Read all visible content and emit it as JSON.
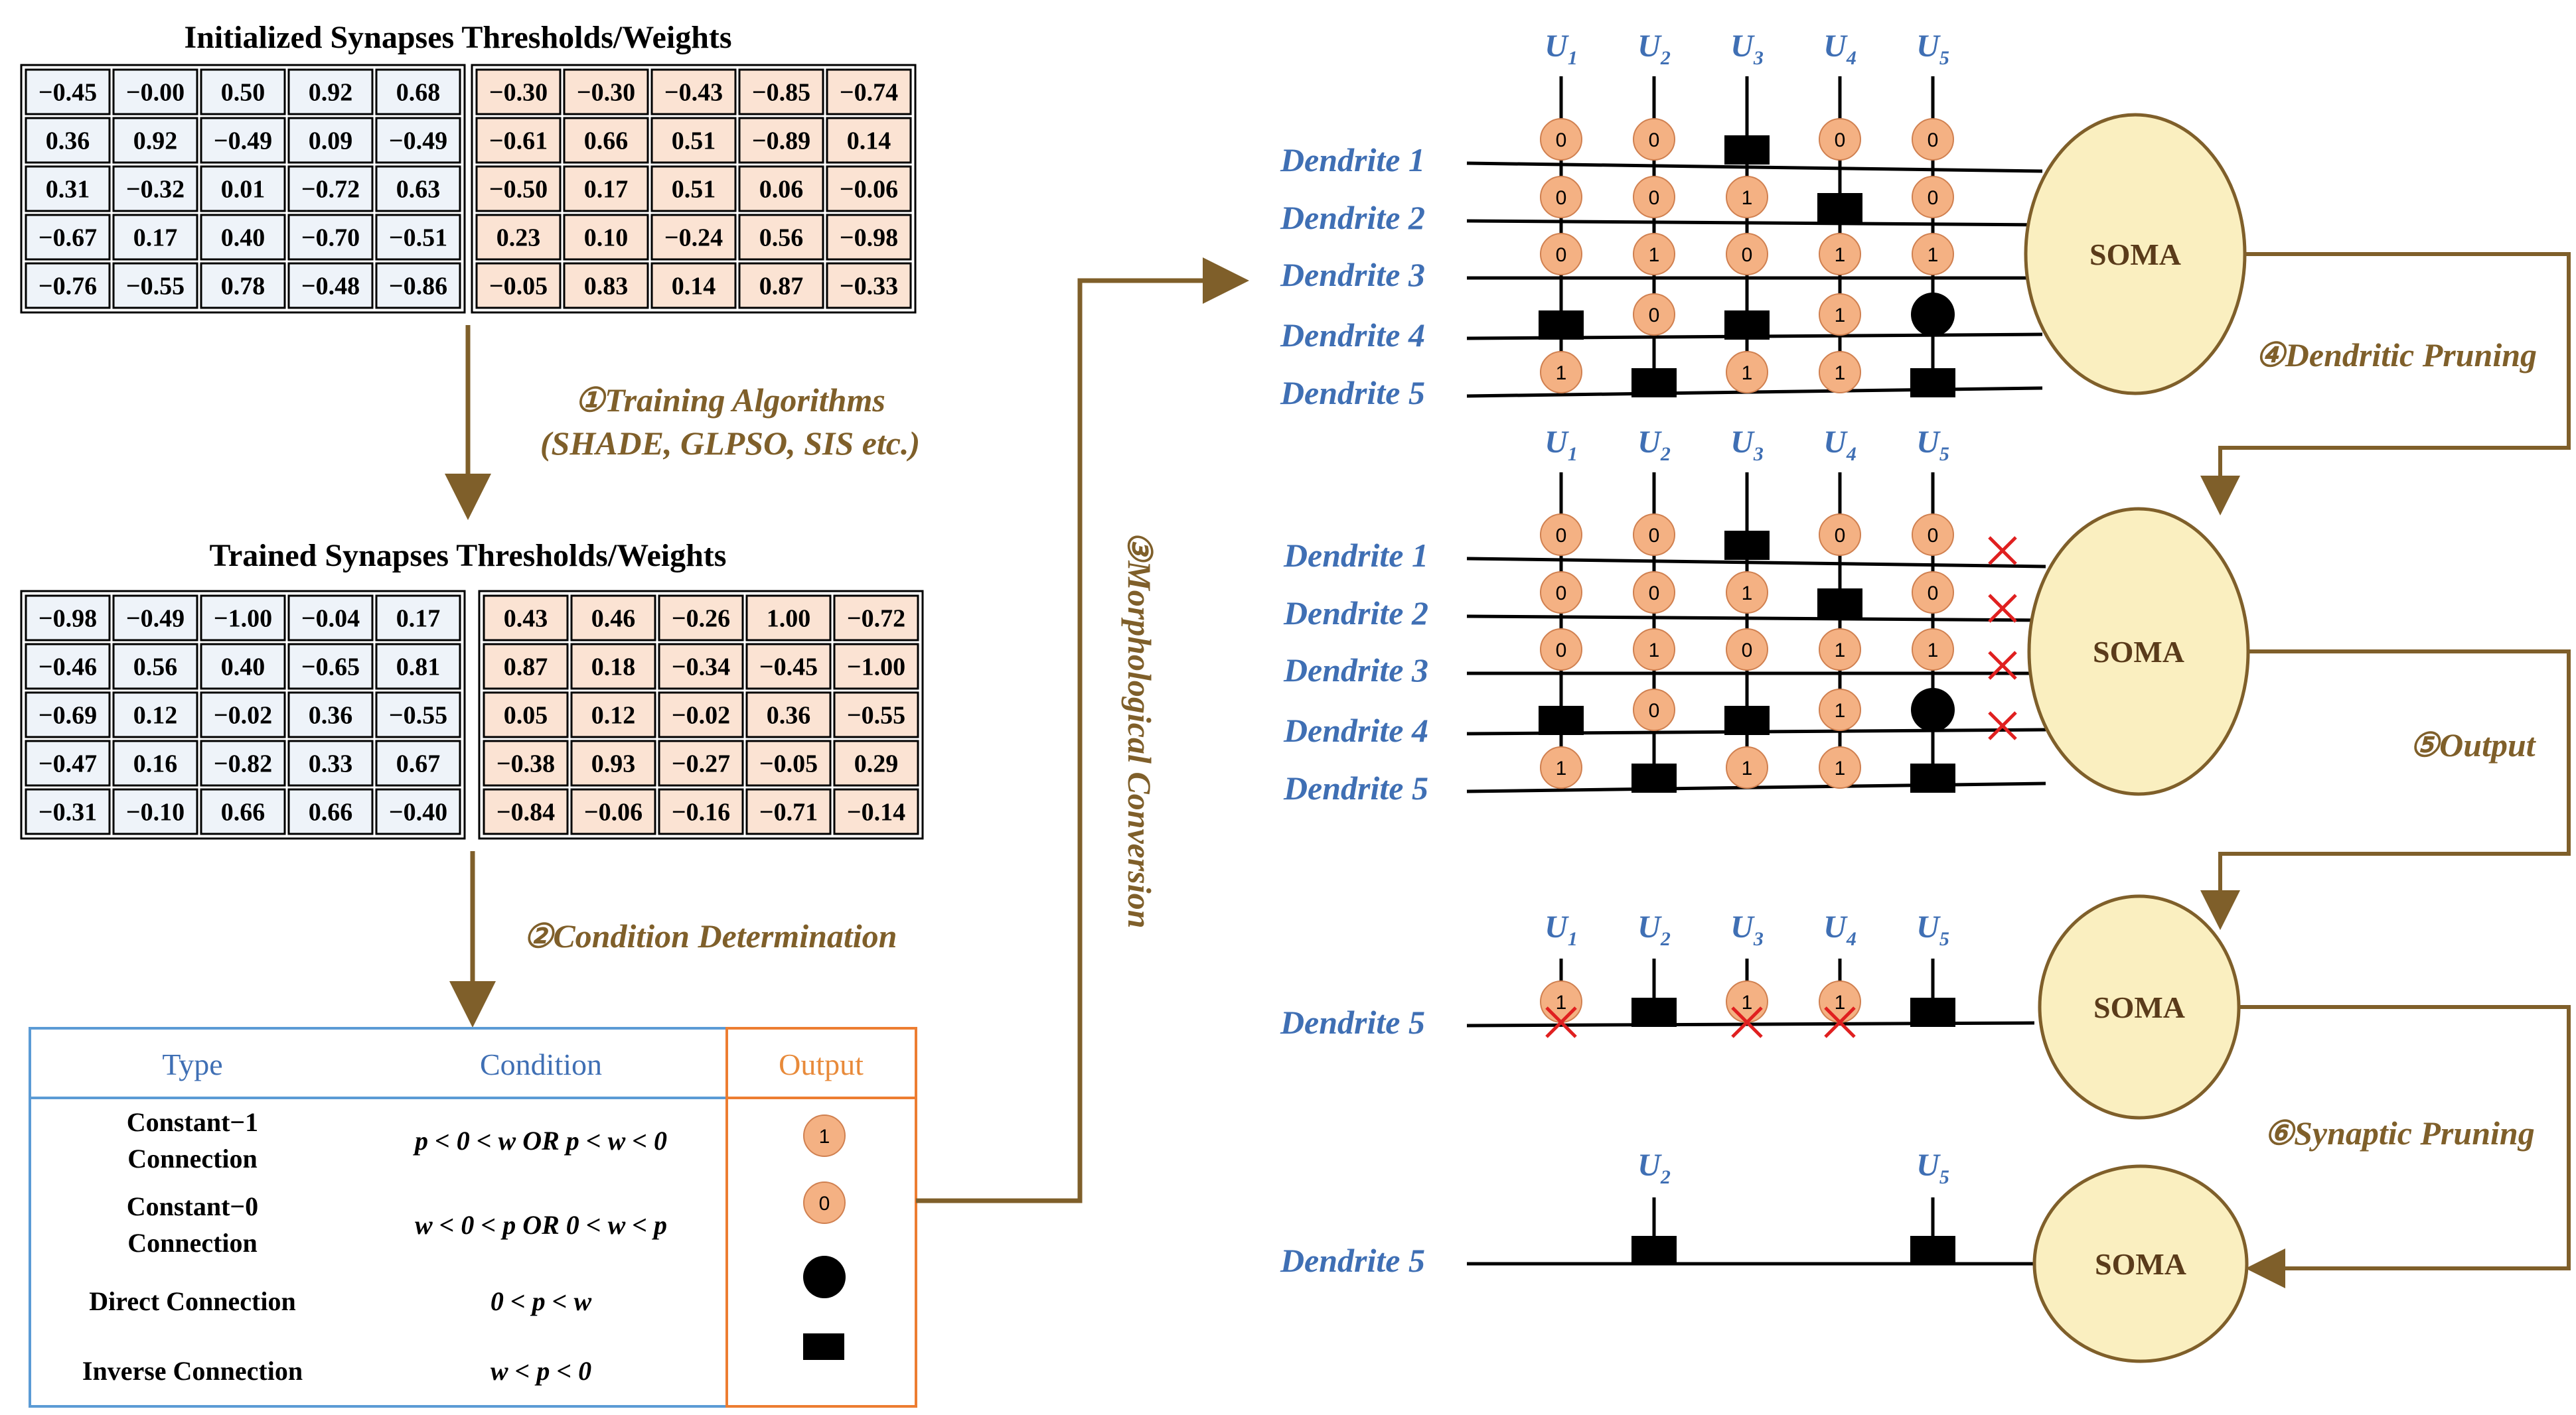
{
  "titles": {
    "initialized": "Initialized Synapses Thresholds/Weights",
    "trained": "Trained Synapses Thresholds/Weights"
  },
  "matrices": {
    "init_weights": [
      [
        "−0.45",
        "−0.00",
        "0.50",
        "0.92",
        "0.68"
      ],
      [
        "0.36",
        "0.92",
        "−0.49",
        "0.09",
        "−0.49"
      ],
      [
        "0.31",
        "−0.32",
        "0.01",
        "−0.72",
        "0.63"
      ],
      [
        "−0.67",
        "0.17",
        "0.40",
        "−0.70",
        "−0.51"
      ],
      [
        "−0.76",
        "−0.55",
        "0.78",
        "−0.48",
        "−0.86"
      ]
    ],
    "init_thresholds": [
      [
        "−0.30",
        "−0.30",
        "−0.43",
        "−0.85",
        "−0.74"
      ],
      [
        "−0.61",
        "0.66",
        "0.51",
        "−0.89",
        "0.14"
      ],
      [
        "−0.50",
        "0.17",
        "0.51",
        "0.06",
        "−0.06"
      ],
      [
        "0.23",
        "0.10",
        "−0.24",
        "0.56",
        "−0.98"
      ],
      [
        "−0.05",
        "0.83",
        "0.14",
        "0.87",
        "−0.33"
      ]
    ],
    "trained_weights": [
      [
        "−0.98",
        "−0.49",
        "−1.00",
        "−0.04",
        "0.17"
      ],
      [
        "−0.46",
        "0.56",
        "0.40",
        "−0.65",
        "0.81"
      ],
      [
        "−0.69",
        "0.12",
        "−0.02",
        "0.36",
        "−0.55"
      ],
      [
        "−0.47",
        "0.16",
        "−0.82",
        "0.33",
        "0.67"
      ],
      [
        "−0.31",
        "−0.10",
        "0.66",
        "0.66",
        "−0.40"
      ]
    ],
    "trained_thresholds": [
      [
        "0.43",
        "0.46",
        "−0.26",
        "1.00",
        "−0.72"
      ],
      [
        "0.87",
        "0.18",
        "−0.34",
        "−0.45",
        "−1.00"
      ],
      [
        "0.05",
        "0.12",
        "−0.02",
        "0.36",
        "−0.55"
      ],
      [
        "−0.38",
        "0.93",
        "−0.27",
        "−0.05",
        "0.29"
      ],
      [
        "−0.84",
        "−0.06",
        "−0.16",
        "−0.71",
        "−0.14"
      ]
    ]
  },
  "steps": {
    "s1_line1": "①Training Algorithms",
    "s1_line2": "(SHADE, GLPSO, SIS etc.)",
    "s2": "②Condition Determination",
    "s3": "③Morphological Conversion",
    "s4": "④Dendritic Pruning",
    "s5": "⑤Output",
    "s6": "⑥Synaptic Pruning"
  },
  "table": {
    "headers": {
      "type": "Type",
      "condition": "Condition",
      "output": "Output"
    },
    "rows": [
      {
        "type_lines": [
          "Constant−1",
          "Connection"
        ],
        "condition": "p < 0 < w OR p < w < 0",
        "output_symbol": "1"
      },
      {
        "type_lines": [
          "Constant−0",
          "Connection"
        ],
        "condition": "w < 0 < p OR 0 < w < p",
        "output_symbol": "0"
      },
      {
        "type_lines": [
          "Direct Connection"
        ],
        "condition": "0 < p < w",
        "output_symbol": "circle"
      },
      {
        "type_lines": [
          "Inverse Connection"
        ],
        "condition": "w < p < 0",
        "output_symbol": "square"
      }
    ]
  },
  "labels": {
    "soma": "SOMA",
    "dendrites": [
      "Dendrite 1",
      "Dendrite 2",
      "Dendrite 3",
      "Dendrite 4",
      "Dendrite 5"
    ],
    "inputs": [
      {
        "main": "U",
        "sub": "1"
      },
      {
        "main": "U",
        "sub": "2"
      },
      {
        "main": "U",
        "sub": "3"
      },
      {
        "main": "U",
        "sub": "4"
      },
      {
        "main": "U",
        "sub": "5"
      }
    ]
  },
  "connection_grid": [
    [
      "0",
      "0",
      "square",
      "0",
      "0"
    ],
    [
      "0",
      "0",
      "1",
      "square",
      "0"
    ],
    [
      "0",
      "1",
      "0",
      "1",
      "1"
    ],
    [
      "square",
      "0",
      "square",
      "1",
      "circle"
    ],
    [
      "1",
      "square",
      "1",
      "1",
      "square"
    ]
  ],
  "pruned_dendrites": [
    "Dendrite 1",
    "Dendrite 2",
    "Dendrite 3",
    "Dendrite 4"
  ],
  "pruned_synapses": [
    "U1",
    "U3",
    "U4"
  ],
  "final_synapses": [
    "U2",
    "U5"
  ],
  "colors": {
    "matrix_blue": "#EEF3F9",
    "matrix_orange": "#FBE3D3",
    "node_orange": "#F4B183",
    "soma_fill": "#FAEFC0",
    "soma_stroke": "#7F5F2A",
    "arrow": "#7F5F2A",
    "label_blue": "#3F6FB4",
    "table_blue": "#5B9BD5",
    "table_orange": "#ED7D31",
    "cross_red": "#E02020"
  }
}
